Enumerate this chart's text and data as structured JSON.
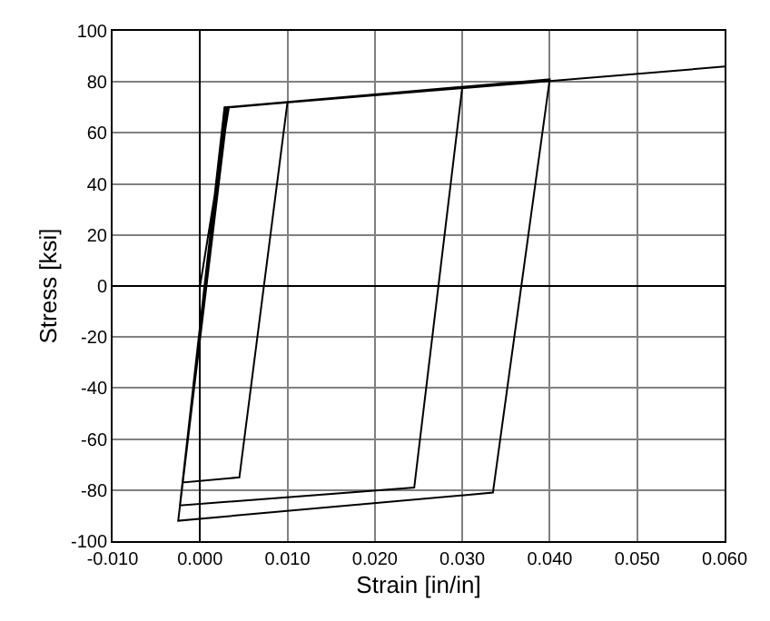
{
  "chart_data": {
    "type": "line",
    "xlabel": "Strain [in/in]",
    "ylabel": "Stress [ksi]",
    "x": [
      0,
      0.0033,
      0.01,
      0.0045,
      -0.002,
      0.003,
      0.03,
      0.0245,
      -0.0023,
      0.0028,
      0.04,
      0.0335,
      -0.0025,
      0.0032,
      0.06
    ],
    "series": [
      {
        "color": "#000000",
        "values": [
          0,
          70,
          72,
          -75,
          -77,
          70,
          78,
          -79,
          -86,
          70,
          81,
          -81,
          -92,
          70,
          86
        ]
      }
    ],
    "xlim": [
      -0.01,
      0.06
    ],
    "xticks": [
      {
        "value": -0.01,
        "label": "-0.010"
      },
      {
        "value": 0,
        "label": "0.000"
      },
      {
        "value": 0.01,
        "label": "0.010"
      },
      {
        "value": 0.02,
        "label": "0.020"
      },
      {
        "value": 0.03,
        "label": "0.030"
      },
      {
        "value": 0.04,
        "label": "0.040"
      },
      {
        "value": 0.05,
        "label": "0.050"
      },
      {
        "value": 0.06,
        "label": "0.060"
      }
    ],
    "ylim": [
      -100,
      100
    ],
    "yticks": [
      -100,
      -80,
      -60,
      -40,
      -20,
      0,
      20,
      40,
      60,
      80,
      100
    ],
    "grid": true,
    "marker": "none",
    "line_style": "solid",
    "legend": false
  }
}
